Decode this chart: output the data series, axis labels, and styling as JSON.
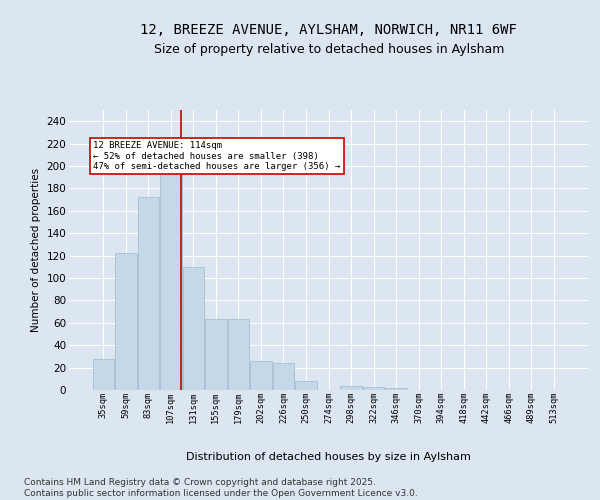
{
  "title1": "12, BREEZE AVENUE, AYLSHAM, NORWICH, NR11 6WF",
  "title2": "Size of property relative to detached houses in Aylsham",
  "xlabel": "Distribution of detached houses by size in Aylsham",
  "ylabel": "Number of detached properties",
  "footnote": "Contains HM Land Registry data © Crown copyright and database right 2025.\nContains public sector information licensed under the Open Government Licence v3.0.",
  "categories": [
    "35sqm",
    "59sqm",
    "83sqm",
    "107sqm",
    "131sqm",
    "155sqm",
    "179sqm",
    "202sqm",
    "226sqm",
    "250sqm",
    "274sqm",
    "298sqm",
    "322sqm",
    "346sqm",
    "370sqm",
    "394sqm",
    "418sqm",
    "442sqm",
    "466sqm",
    "489sqm",
    "513sqm"
  ],
  "values": [
    28,
    122,
    172,
    200,
    110,
    63,
    63,
    26,
    24,
    8,
    0,
    4,
    3,
    2,
    0,
    0,
    0,
    0,
    0,
    0,
    0
  ],
  "bar_color": "#c5d8e8",
  "bar_edge_color": "#a0b8cc",
  "vline_x": 3.47,
  "vline_color": "#cc0000",
  "annotation_text": "12 BREEZE AVENUE: 114sqm\n← 52% of detached houses are smaller (398)\n47% of semi-detached houses are larger (356) →",
  "annotation_box_color": "#ffffff",
  "annotation_box_edge": "#cc0000",
  "ylim": [
    0,
    250
  ],
  "yticks": [
    0,
    20,
    40,
    60,
    80,
    100,
    120,
    140,
    160,
    180,
    200,
    220,
    240
  ],
  "background_color": "#dce6f0",
  "axes_background": "#dce6f0",
  "grid_color": "#ffffff",
  "title1_fontsize": 10,
  "title2_fontsize": 9,
  "footnote_fontsize": 6.5
}
